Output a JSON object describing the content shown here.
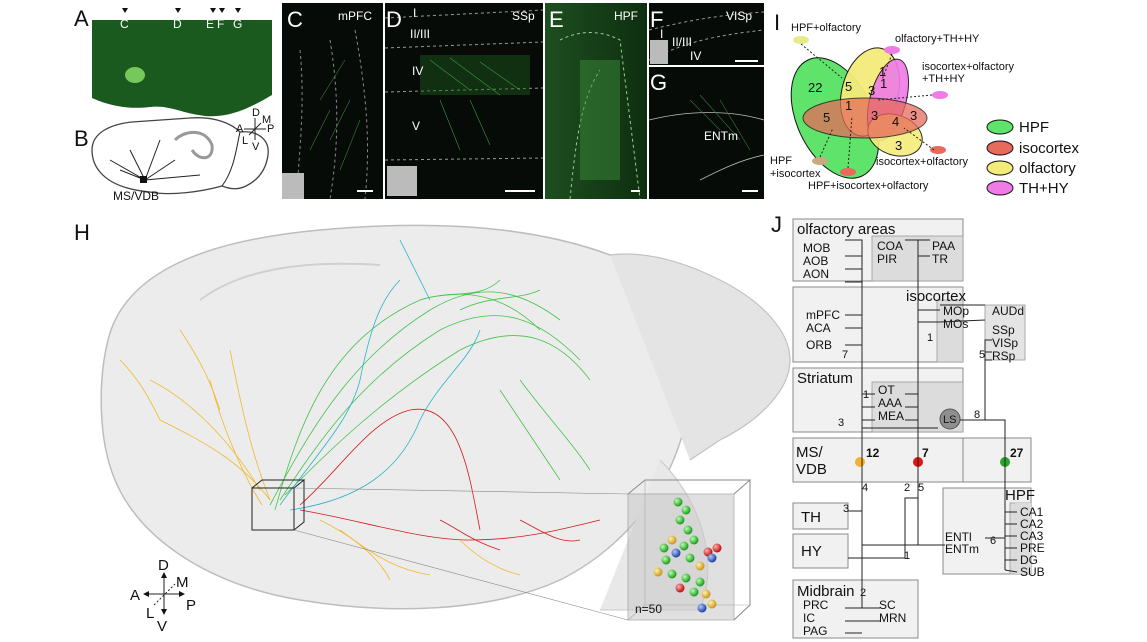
{
  "panels": {
    "A": {
      "letter": "A",
      "markers": [
        "C",
        "D",
        "E",
        "F",
        "G"
      ]
    },
    "B": {
      "letter": "B",
      "label": "MS/VDB",
      "axes": {
        "d": "D",
        "v": "V",
        "a": "A",
        "p": "P",
        "l": "L",
        "m": "M"
      }
    },
    "C": {
      "letter": "C",
      "label": "mPFC"
    },
    "D": {
      "letter": "D",
      "label": "SSp",
      "layers": [
        "I",
        "II/III",
        "IV",
        "V"
      ]
    },
    "E": {
      "letter": "E",
      "label": "HPF"
    },
    "F": {
      "letter": "F",
      "label": "VISp",
      "layers": [
        "I",
        "II/III",
        "IV"
      ]
    },
    "G": {
      "letter": "G",
      "label": "ENTm"
    },
    "H": {
      "letter": "H",
      "count": "n=50",
      "axes": {
        "d": "D",
        "v": "V",
        "a": "A",
        "p": "P",
        "l": "L",
        "m": "M"
      }
    },
    "I": {
      "letter": "I"
    },
    "J": {
      "letter": "J"
    }
  },
  "venn": {
    "regions": {
      "hpf_only": "22",
      "hpf_olf": "5",
      "olf_th": "1",
      "th_only": "1",
      "center_left": "3",
      "center": "3",
      "iso_right": "4",
      "iso_right2": "3",
      "iso_only": "3",
      "olf_only": "3",
      "iso_hpf": "5",
      "hpf_iso_olf": "1"
    },
    "callouts": {
      "hpf_olf": "HPF+olfactory",
      "olf_th_hy": "olfactory+TH+HY",
      "iso_olf_th_hy_1": "isocortex+olfactory",
      "iso_olf_th_hy_2": "+TH+HY",
      "iso_olf": "isocortex+olfactory",
      "hpf_iso_1": "HPF",
      "hpf_iso_2": "+isocortex",
      "hpf_iso_olf": "HPF+isocortex+olfactory"
    },
    "legend": [
      {
        "name": "HPF",
        "color": "#5fe36a"
      },
      {
        "name": "isocortex",
        "color": "#e76a5b"
      },
      {
        "name": "olfactory",
        "color": "#f4ec7a"
      },
      {
        "name": "TH+HY",
        "color": "#f07ae6"
      }
    ]
  },
  "schematic": {
    "olfactory": {
      "title": "olfactory areas",
      "left": [
        "MOB",
        "AOB",
        "AON"
      ],
      "mid": [
        "COA",
        "PIR"
      ],
      "right": [
        "PAA",
        "TR"
      ]
    },
    "isocortex": {
      "title": "isocortex",
      "left": [
        "mPFC",
        "ACA",
        "ORB"
      ],
      "mid": [
        "MOp",
        "MOs"
      ],
      "right": [
        "AUDd",
        "SSp",
        "VISp",
        "RSp"
      ],
      "n_left": "7",
      "n_mid": "1",
      "n_right": "5"
    },
    "striatum": {
      "title": "Striatum",
      "items": [
        "OT",
        "AAA",
        "MEA"
      ],
      "ls": "LS",
      "n1": "1",
      "n3": "3",
      "n8": "8"
    },
    "msvdb": {
      "title1": "MS/",
      "title2": "VDB",
      "groups": [
        {
          "count": "12",
          "color": "#f3b12e"
        },
        {
          "count": "7",
          "color": "#e01414"
        },
        {
          "count": "27",
          "color": "#2aa52a"
        }
      ],
      "n4": "4",
      "n2": "2",
      "n5": "5"
    },
    "th": {
      "title": "TH",
      "n": "3"
    },
    "hy": {
      "title": "HY",
      "n": "1"
    },
    "ent": {
      "items": [
        "ENTl",
        "ENTm"
      ],
      "n": "6"
    },
    "hpf": {
      "title": "HPF",
      "items": [
        "CA1",
        "CA2",
        "CA3",
        "PRE",
        "DG",
        "SUB"
      ]
    },
    "midbrain": {
      "title": "Midbrain",
      "n": "2",
      "left": [
        "PRC",
        "IC",
        "PAG"
      ],
      "right": [
        "SC",
        "MRN"
      ]
    }
  }
}
